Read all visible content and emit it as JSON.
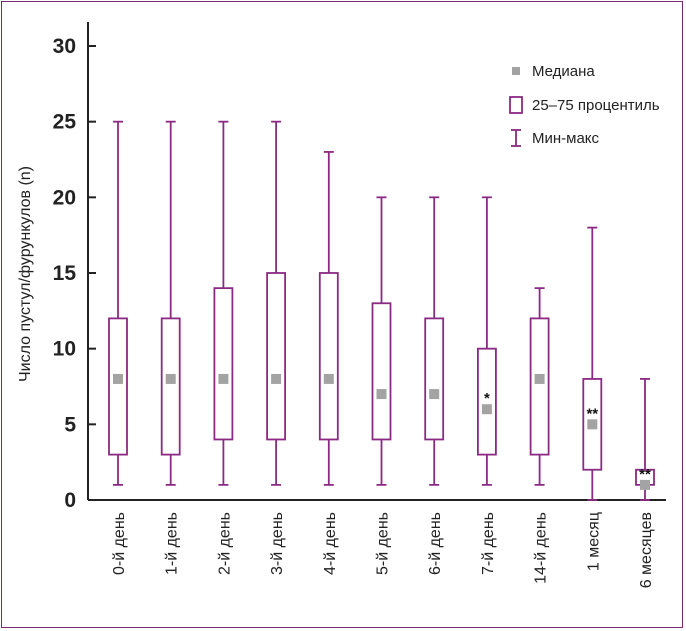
{
  "chart_data": {
    "type": "boxplot",
    "ylabel": "Число пустул/фурункулов (n)",
    "ylim": [
      0,
      30
    ],
    "yticks": [
      0,
      5,
      10,
      15,
      20,
      25,
      30
    ],
    "grid": false,
    "legend_position": "top-right",
    "legend": {
      "median": "Медиана",
      "iqr": "25–75 процентиль",
      "range": "Мин-макс"
    },
    "colors": {
      "box": "#8b2a82",
      "median": "#a3a3a3",
      "axis": "#222222"
    },
    "categories": [
      "0-й день",
      "1-й день",
      "2-й день",
      "3-й день",
      "4-й день",
      "5-й день",
      "6-й день",
      "7-й день",
      "14-й день",
      "1 месяц",
      "6 месяцев"
    ],
    "min": [
      1,
      1,
      1,
      1,
      1,
      1,
      1,
      1,
      1,
      0,
      0
    ],
    "q1": [
      3,
      3,
      4,
      4,
      4,
      4,
      4,
      3,
      3,
      2,
      1
    ],
    "median": [
      8,
      8,
      8,
      8,
      8,
      7,
      7,
      6,
      8,
      5,
      1
    ],
    "q3": [
      12,
      12,
      14,
      15,
      15,
      13,
      12,
      10,
      12,
      8,
      2
    ],
    "max": [
      25,
      25,
      25,
      25,
      23,
      20,
      20,
      20,
      14,
      18,
      8
    ],
    "annotations": [
      "",
      "",
      "",
      "",
      "",
      "",
      "",
      "*",
      "",
      "**",
      "**"
    ]
  }
}
